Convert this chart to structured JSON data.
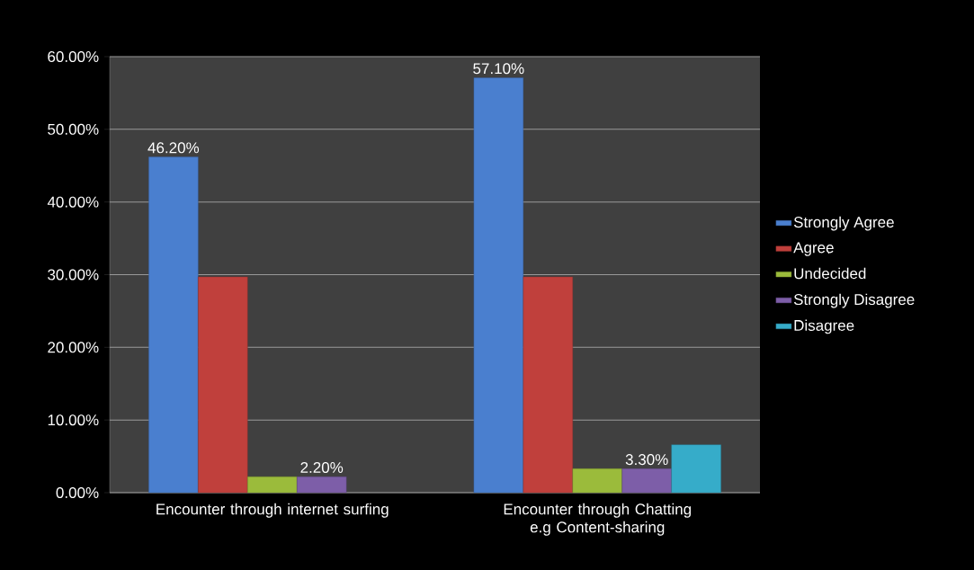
{
  "chart_data": {
    "type": "bar",
    "categories": [
      "Encounter  through internet surfing",
      "Encounter through Chatting e.g Content-sharing"
    ],
    "series": [
      {
        "name": "Strongly Agree",
        "color": "#4a7fcf",
        "values": [
          46.2,
          57.1
        ],
        "value_labels": [
          "46.20%",
          "57.10%"
        ]
      },
      {
        "name": "Agree",
        "color": "#c0403c",
        "values": [
          29.7,
          29.7
        ]
      },
      {
        "name": "Undecided",
        "color": "#9bbb3b",
        "values": [
          2.2,
          3.3
        ]
      },
      {
        "name": "Strongly Disagree",
        "color": "#7d5ea8",
        "values": [
          2.2,
          3.3
        ],
        "value_labels": [
          "2.20%",
          "3.30%"
        ]
      },
      {
        "name": "Disagree",
        "color": "#36acc9",
        "values": [
          null,
          6.6
        ]
      }
    ],
    "ylim": [
      0,
      60
    ],
    "yticks": [
      {
        "value": 0,
        "label": "0.00%"
      },
      {
        "value": 10,
        "label": "10.00%"
      },
      {
        "value": 20,
        "label": "20.00%"
      },
      {
        "value": 30,
        "label": "30.00%"
      },
      {
        "value": 40,
        "label": "40.00%"
      },
      {
        "value": 50,
        "label": "50.00%"
      },
      {
        "value": 60,
        "label": "60.00%"
      }
    ],
    "grid": "y",
    "legend": "right"
  }
}
